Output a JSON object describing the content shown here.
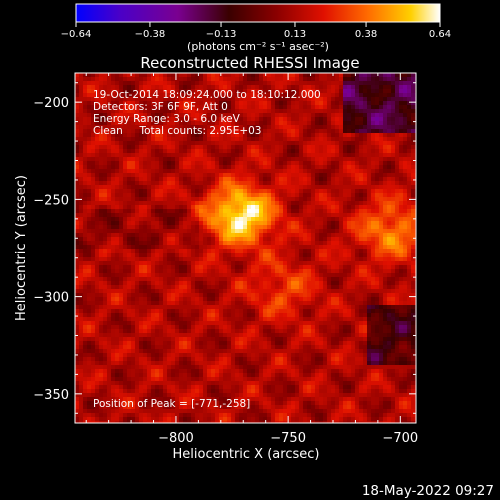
{
  "chart_data": {
    "type": "heatmap",
    "title": "Reconstructed RHESSI Image",
    "xlabel": "Heliocentric X (arcsec)",
    "ylabel": "Heliocentric Y (arcsec)",
    "xlim": [
      -845,
      -693
    ],
    "ylim": [
      -365,
      -185
    ],
    "x_ticks": [
      {
        "value": -800,
        "label": "−800"
      },
      {
        "value": -750,
        "label": "−750"
      },
      {
        "value": -700,
        "label": "−700"
      }
    ],
    "y_ticks": [
      {
        "value": -200,
        "label": "−200"
      },
      {
        "value": -250,
        "label": "−250"
      },
      {
        "value": -300,
        "label": "−300"
      },
      {
        "value": -350,
        "label": "−350"
      }
    ],
    "colorbar": {
      "min": -0.64,
      "max": 0.64,
      "tick_values": [
        -0.64,
        -0.38,
        -0.13,
        0.13,
        0.38,
        0.64
      ],
      "tick_labels": [
        "−0.64",
        "−0.38",
        "−0.13",
        "0.13",
        "0.38",
        "0.64"
      ],
      "units": "(photons cm⁻² s⁻¹ asec⁻²)"
    },
    "sources": [
      {
        "x": -771,
        "y": -258,
        "peak": 0.64
      },
      {
        "x": -704,
        "y": -266,
        "peak": 0.42
      },
      {
        "x": -752,
        "y": -296,
        "peak": 0.3
      }
    ],
    "annotations": [
      "19-Oct-2014 18:09:24.000 to 18:10:12.000",
      "Detectors: 3F 6F 9F, Att 0",
      "Energy Range: 3.0 - 6.0 keV",
      "Clean     Total counts: 2.95E+03"
    ],
    "peak_label": "Position of Peak = [-771,-258]"
  },
  "footer": {
    "timestamp": "18-May-2022 09:27"
  }
}
